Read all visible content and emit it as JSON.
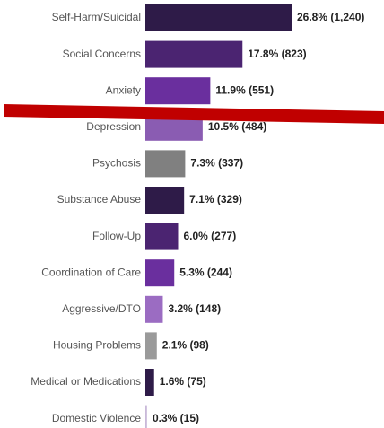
{
  "chart_data": {
    "type": "hbar",
    "categories": [
      "Self-Harm/Suicidal",
      "Social Concerns",
      "Anxiety",
      "Depression",
      "Psychosis",
      "Substance Abuse",
      "Follow-Up",
      "Coordination of Care",
      "Aggressive/DTO",
      "Housing Problems",
      "Medical or Medications",
      "Domestic Violence"
    ],
    "values": [
      26.8,
      17.8,
      11.9,
      10.5,
      7.3,
      7.1,
      6.0,
      5.3,
      3.2,
      2.1,
      1.6,
      0.3
    ],
    "value_labels": [
      "26.8% (1,240)",
      "17.8% (823)",
      "11.9% (551)",
      "10.5% (484)",
      "7.3% (337)",
      "7.1% (329)",
      "6.0% (277)",
      "5.3% (244)",
      "3.2% (148)",
      "2.1% (98)",
      "1.6% (75)",
      "0.3% (15)"
    ],
    "colors": [
      "#2e1b48",
      "#4b2471",
      "#6a2f9e",
      "#8a5cb2",
      "#808080",
      "#2e1b48",
      "#4b2471",
      "#6a2f9e",
      "#9b6cc2",
      "#9a9a9a",
      "#2e1b48",
      "#c9b9d9"
    ]
  }
}
